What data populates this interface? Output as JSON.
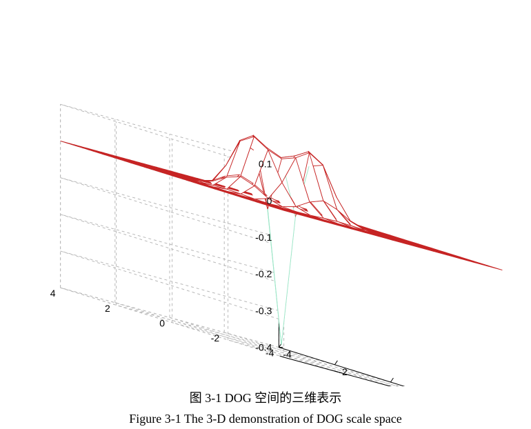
{
  "chart_data": {
    "type": "surface",
    "function": "difference of gaussians",
    "x": [
      -4,
      -3.5,
      -3,
      -2.5,
      -2,
      -1.5,
      -1,
      -0.5,
      0,
      0.5,
      1,
      1.5,
      2,
      2.5,
      3,
      3.5,
      4
    ],
    "y": [
      -4,
      -3.5,
      -3,
      -2.5,
      -2,
      -1.5,
      -1,
      -0.5,
      0,
      0.5,
      1,
      1.5,
      2,
      2.5,
      3,
      3.5,
      4
    ],
    "z_min": -0.38,
    "xlim": [
      -4,
      4
    ],
    "ylim": [
      -4,
      4
    ],
    "zlim": [
      -0.4,
      0.1
    ],
    "x_ticks": [
      "-4",
      "-2",
      "0",
      "2",
      "4"
    ],
    "y_ticks": [
      "-4",
      "-2",
      "0",
      "2",
      "4"
    ],
    "z_ticks": [
      "0.1",
      "0",
      "-0.1",
      "-0.2",
      "-0.3",
      "-0.4"
    ],
    "grid": true,
    "colors": {
      "flat": "#c62424",
      "deep": "#8fb4ee",
      "mid": "#9ee6c8",
      "grid": "#b8b8b8"
    }
  },
  "caption": {
    "cn": "图 3-1 DOG 空间的三维表示",
    "en": "Figure 3-1 The 3-D demonstration of DOG scale space"
  }
}
